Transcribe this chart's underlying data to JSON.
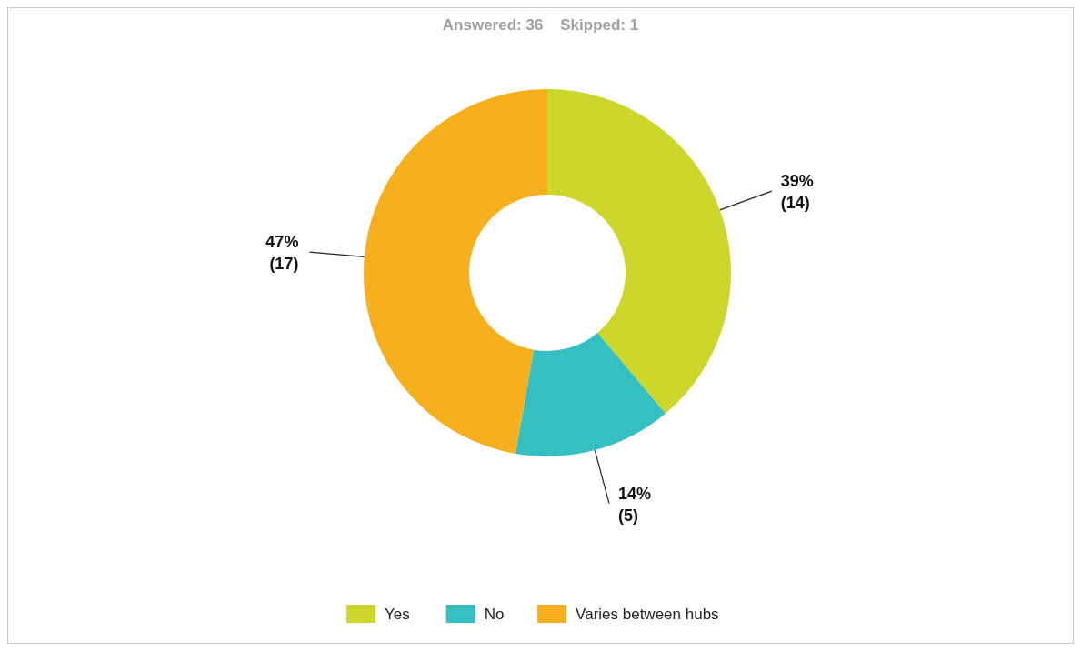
{
  "chart_data": {
    "type": "donut",
    "title": "Answered: 36    Skipped: 1",
    "categories": [
      "Yes",
      "No",
      "Varies between hubs"
    ],
    "values": [
      14,
      5,
      17
    ],
    "colors": [
      "#cdd62a",
      "#35bfc0",
      "#f6b01e"
    ],
    "value_labels": [
      "39%\n(14)",
      "14%\n(5)",
      "47%\n(17)"
    ],
    "legend": "bottom"
  }
}
